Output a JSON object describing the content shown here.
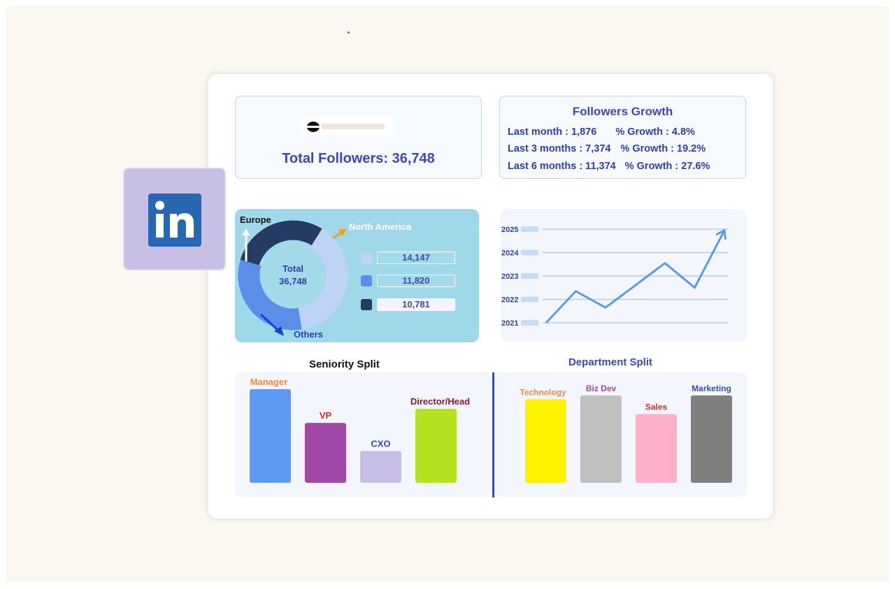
{
  "summary": {
    "total_followers_text": "Total Followers: 36,748"
  },
  "growth": {
    "title": "Followers Growth",
    "rows": [
      {
        "period": "Last month : 1,876",
        "growth": "% Growth : 4.8%"
      },
      {
        "period": "Last 3 months : 7,374",
        "growth": "% Growth : 19.2%"
      },
      {
        "period": "Last 6 months : 11,374",
        "growth": "% Growth : 27.6%"
      }
    ]
  },
  "colors": {
    "accent": "#3b49b8",
    "tile": "#c7bfe6",
    "linkedin": "#2867b2"
  },
  "chart_data": [
    {
      "type": "pie",
      "variant": "donut",
      "center_label": [
        "Total",
        "36,748"
      ],
      "labels": [
        "North America",
        "Europe",
        "Others"
      ],
      "values": [
        14147,
        11820,
        10781
      ],
      "value_labels": [
        "14,147",
        "11,820",
        "10,781"
      ],
      "colors": [
        "#bfd3f6",
        "#5b8ee8",
        "#263b63"
      ]
    },
    {
      "type": "line",
      "y_ticks": [
        "2021",
        "2022",
        "2023",
        "2024",
        "2025"
      ],
      "x": [
        0,
        1,
        2,
        3,
        4,
        5,
        6
      ],
      "values": [
        2021.0,
        2022.35,
        2021.65,
        2022.6,
        2023.55,
        2022.5,
        2024.95
      ],
      "ylim": [
        2021,
        2025
      ],
      "grid": true,
      "arrow_end": true,
      "color": "#5b9ae8"
    },
    {
      "type": "bar",
      "title": "Seniority Split",
      "categories": [
        "Manager",
        "VP",
        "CXO",
        "Director/Head"
      ],
      "values": [
        100,
        64,
        34,
        79
      ],
      "colors": [
        "#5b9af5",
        "#a048a7",
        "#c6bee6",
        "#b3e31e"
      ],
      "label_colors": [
        "#f08a3c",
        "#d62a2a",
        "#3b49b8",
        "#8b1a2e"
      ]
    },
    {
      "type": "bar",
      "title": "Department Split",
      "categories": [
        "Technology",
        "Biz Dev",
        "Sales",
        "Marketing"
      ],
      "values": [
        90,
        94,
        74,
        94
      ],
      "colors": [
        "#fff200",
        "#c0c0c0",
        "#fdb0c8",
        "#7f7f7f"
      ],
      "label_colors": [
        "#f08a3c",
        "#a048a7",
        "#d62a2a",
        "#3b49b8"
      ]
    }
  ]
}
